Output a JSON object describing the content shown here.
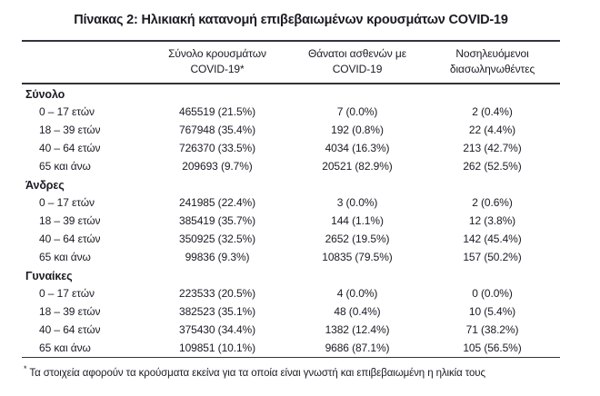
{
  "title": "Πίνακας 2: Ηλικιακή κατανομή επιβεβαιωμένων κρουσμάτων COVID-19",
  "table": {
    "columns": [
      {
        "line1": "Σύνολο κρουσμάτων",
        "line2": "COVID-19*"
      },
      {
        "line1": "Θάνατοι ασθενών με",
        "line2": "COVID-19"
      },
      {
        "line1": "Νοσηλευόμενοι",
        "line2": "διασωληνωθέντες"
      }
    ],
    "sections": [
      {
        "label": "Σύνολο",
        "rows": [
          {
            "age": "0 – 17 ετών",
            "cases": "465519 (21.5%)",
            "deaths": "7 (0.0%)",
            "intubated": "2 (0.4%)"
          },
          {
            "age": "18 – 39 ετών",
            "cases": "767948 (35.4%)",
            "deaths": "192 (0.8%)",
            "intubated": "22 (4.4%)"
          },
          {
            "age": "40 – 64 ετών",
            "cases": "726370 (33.5%)",
            "deaths": "4034 (16.3%)",
            "intubated": "213 (42.7%)"
          },
          {
            "age": "65 και άνω",
            "cases": "209693 (9.7%)",
            "deaths": "20521 (82.9%)",
            "intubated": "262 (52.5%)"
          }
        ]
      },
      {
        "label": "Άνδρες",
        "rows": [
          {
            "age": "0 – 17 ετών",
            "cases": "241985 (22.4%)",
            "deaths": "3 (0.0%)",
            "intubated": "2 (0.6%)"
          },
          {
            "age": "18 – 39 ετών",
            "cases": "385419 (35.7%)",
            "deaths": "144 (1.1%)",
            "intubated": "12 (3.8%)"
          },
          {
            "age": "40 – 64 ετών",
            "cases": "350925 (32.5%)",
            "deaths": "2652 (19.5%)",
            "intubated": "142 (45.4%)"
          },
          {
            "age": "65 και άνω",
            "cases": "99836 (9.3%)",
            "deaths": "10835 (79.5%)",
            "intubated": "157 (50.2%)"
          }
        ]
      },
      {
        "label": "Γυναίκες",
        "rows": [
          {
            "age": "0 – 17 ετών",
            "cases": "223533 (20.5%)",
            "deaths": "4 (0.0%)",
            "intubated": "0 (0.0%)"
          },
          {
            "age": "18 – 39 ετών",
            "cases": "382523 (35.1%)",
            "deaths": "48 (0.4%)",
            "intubated": "10 (5.4%)"
          },
          {
            "age": "40 – 64 ετών",
            "cases": "375430 (34.4%)",
            "deaths": "1382 (12.4%)",
            "intubated": "71 (38.2%)"
          },
          {
            "age": "65 και άνω",
            "cases": "109851 (10.1%)",
            "deaths": "9686 (87.1%)",
            "intubated": "105 (56.5%)"
          }
        ]
      }
    ]
  },
  "footnote": {
    "symbol": "*",
    "text": "Τα στοιχεία αφορούν τα κρούσματα εκείνα για τα οποία είναι γνωστή και επιβεβαιωμένη η ηλικία τους"
  },
  "colors": {
    "text": "#1b1b24",
    "rule": "#33333b",
    "background": "#ffffff"
  }
}
